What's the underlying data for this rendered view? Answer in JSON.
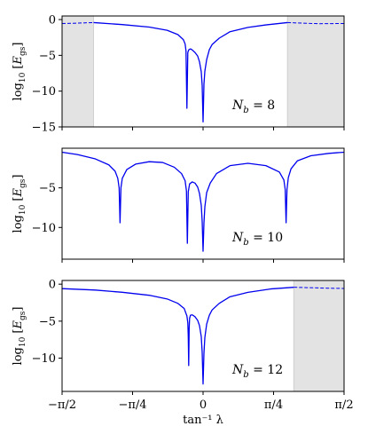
{
  "chart_data": [
    {
      "type": "line",
      "panel": "top",
      "ylabel": "log10 [E_gs]",
      "ylabel_parts": {
        "prefix": "log",
        "sub": "10",
        "mid": " [",
        "italic": "E",
        "sub2": "gs",
        "suffix": "]"
      },
      "xlim": [
        -1.5708,
        1.5708
      ],
      "ylim": [
        -15,
        0.5
      ],
      "yticks": [
        0,
        -5,
        -10,
        -15
      ],
      "ytick_labels": [
        "0",
        "−5",
        "−10",
        "−15"
      ],
      "shaded_regions": [
        [
          -1.5708,
          -1.22
        ],
        [
          0.94,
          1.5708
        ]
      ],
      "annotation": {
        "prefix": "N",
        "sub": "b",
        "suffix": " = 8"
      },
      "series_color": "#0000ee",
      "dashed_segments": [
        {
          "x": [
            -1.5708,
            -1.4,
            -1.22
          ],
          "y": [
            -0.55,
            -0.5,
            -0.42
          ]
        },
        {
          "x": [
            0.94,
            1.1,
            1.3,
            1.5708
          ],
          "y": [
            -0.42,
            -0.5,
            -0.58,
            -0.55
          ]
        }
      ],
      "x": [
        -1.22,
        -0.9,
        -0.6,
        -0.4,
        -0.28,
        -0.22,
        -0.2,
        -0.19,
        -0.18,
        -0.17,
        -0.16,
        -0.15,
        -0.14,
        -0.12,
        -0.09,
        -0.06,
        -0.04,
        -0.02,
        -0.01,
        0.0,
        0.01,
        0.02,
        0.04,
        0.07,
        0.1,
        0.18,
        0.3,
        0.5,
        0.7,
        0.94
      ],
      "y": [
        -0.42,
        -0.7,
        -1.05,
        -1.5,
        -2.1,
        -2.8,
        -3.4,
        -4.4,
        -12.4,
        -4.6,
        -4.25,
        -4.15,
        -4.1,
        -4.25,
        -4.6,
        -5.1,
        -5.9,
        -7.3,
        -9.2,
        -14.3,
        -9.0,
        -7.2,
        -5.6,
        -4.2,
        -3.5,
        -2.6,
        -1.7,
        -1.1,
        -0.75,
        -0.42
      ]
    },
    {
      "type": "line",
      "panel": "middle",
      "ylabel": "log10 [E_gs]",
      "ylabel_parts": {
        "prefix": "log",
        "sub": "10",
        "mid": " [",
        "italic": "E",
        "sub2": "gs",
        "suffix": "]"
      },
      "xlim": [
        -1.5708,
        1.5708
      ],
      "ylim": [
        -14,
        0
      ],
      "yticks": [
        -5,
        -10
      ],
      "ytick_labels": [
        "−5",
        "−10"
      ],
      "shaded_regions": [],
      "annotation": {
        "prefix": "N",
        "sub": "b",
        "suffix": " = 10"
      },
      "series_color": "#0000ee",
      "dashed_segments": [],
      "x": [
        -1.5708,
        -1.4,
        -1.2,
        -1.05,
        -0.98,
        -0.95,
        -0.935,
        -0.925,
        -0.915,
        -0.9,
        -0.85,
        -0.75,
        -0.6,
        -0.45,
        -0.32,
        -0.24,
        -0.2,
        -0.185,
        -0.175,
        -0.165,
        -0.15,
        -0.12,
        -0.09,
        -0.06,
        -0.04,
        -0.02,
        -0.01,
        0.0,
        0.01,
        0.02,
        0.04,
        0.08,
        0.15,
        0.3,
        0.5,
        0.7,
        0.85,
        0.9,
        0.915,
        0.925,
        0.935,
        0.95,
        0.98,
        1.05,
        1.2,
        1.4,
        1.5708
      ],
      "y": [
        -0.5,
        -0.8,
        -1.35,
        -2.1,
        -2.9,
        -3.8,
        -5.0,
        -9.4,
        -5.0,
        -3.8,
        -2.7,
        -2.0,
        -1.7,
        -1.8,
        -2.4,
        -3.2,
        -4.1,
        -5.4,
        -12.0,
        -5.5,
        -4.5,
        -4.25,
        -4.4,
        -4.9,
        -5.7,
        -7.2,
        -9.2,
        -13.0,
        -9.4,
        -7.4,
        -5.6,
        -4.4,
        -3.2,
        -2.2,
        -1.9,
        -2.2,
        -3.0,
        -4.0,
        -5.2,
        -9.4,
        -5.2,
        -3.7,
        -2.6,
        -1.6,
        -0.95,
        -0.65,
        -0.5
      ]
    },
    {
      "type": "line",
      "panel": "bottom",
      "ylabel": "log10 [E_gs]",
      "ylabel_parts": {
        "prefix": "log",
        "sub": "10",
        "mid": " [",
        "italic": "E",
        "sub2": "gs",
        "suffix": "]"
      },
      "xlim": [
        -1.5708,
        1.5708
      ],
      "ylim": [
        -14.5,
        0.5
      ],
      "yticks": [
        0,
        -5,
        -10
      ],
      "ytick_labels": [
        "0",
        "−5",
        "−10"
      ],
      "xticks": [
        -1.5708,
        -0.7854,
        0,
        0.7854,
        1.5708
      ],
      "xtick_labels": [
        "−π/2",
        "−π/4",
        "0",
        "π/4",
        "π/2"
      ],
      "xlabel": "tan⁻¹ λ",
      "shaded_regions": [
        [
          1.01,
          1.5708
        ]
      ],
      "annotation": {
        "prefix": "N",
        "sub": "b",
        "suffix": " = 12"
      },
      "series_color": "#0000ee",
      "dashed_segments": [
        {
          "x": [
            1.01,
            1.2,
            1.4,
            1.5708
          ],
          "y": [
            -0.42,
            -0.48,
            -0.55,
            -0.58
          ]
        }
      ],
      "x": [
        -1.5708,
        -1.2,
        -0.9,
        -0.6,
        -0.4,
        -0.28,
        -0.21,
        -0.18,
        -0.17,
        -0.165,
        -0.16,
        -0.155,
        -0.15,
        -0.14,
        -0.12,
        -0.09,
        -0.06,
        -0.04,
        -0.02,
        -0.01,
        0.0,
        0.01,
        0.02,
        0.04,
        0.07,
        0.1,
        0.18,
        0.3,
        0.5,
        0.75,
        1.01
      ],
      "y": [
        -0.6,
        -0.8,
        -1.1,
        -1.5,
        -2.0,
        -2.6,
        -3.3,
        -4.3,
        -5.2,
        -7.0,
        -11.0,
        -6.0,
        -4.6,
        -4.2,
        -4.15,
        -4.4,
        -4.9,
        -5.6,
        -7.1,
        -9.2,
        -13.5,
        -9.3,
        -7.2,
        -5.4,
        -4.2,
        -3.5,
        -2.6,
        -1.7,
        -1.1,
        -0.65,
        -0.42
      ]
    }
  ]
}
